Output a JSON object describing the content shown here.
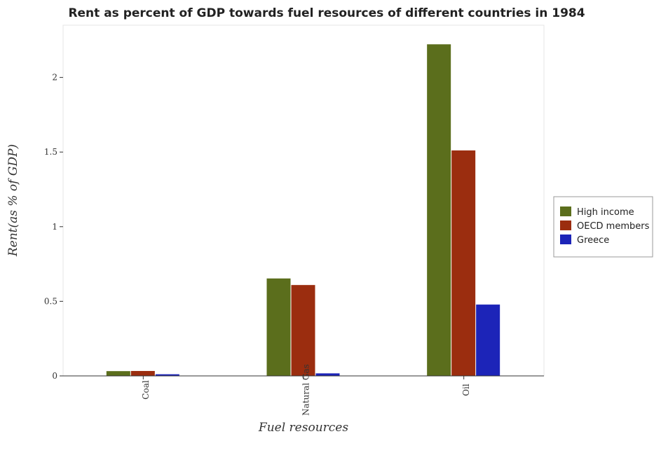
{
  "chart_data": {
    "type": "bar",
    "title": "Rent as percent of GDP towards fuel resources of different countries in 1984",
    "xlabel": "Fuel resources",
    "ylabel": "Rent(as % of GDP)",
    "categories": [
      "Coal",
      "Natural Gas",
      "Oil"
    ],
    "ylim": [
      0,
      2.35
    ],
    "yticks": [
      0,
      0.5,
      1,
      1.5,
      2
    ],
    "ytick_labels": [
      "0",
      "0.5",
      "1",
      "1.5",
      "2"
    ],
    "series": [
      {
        "name": "High income",
        "color": "#5b6e1c",
        "values": [
          0.032,
          0.653,
          2.222
        ]
      },
      {
        "name": "OECD members",
        "color": "#9b2d0f",
        "values": [
          0.033,
          0.609,
          1.511
        ]
      },
      {
        "name": "Greece",
        "color": "#1c24b8",
        "values": [
          0.011,
          0.017,
          0.478
        ]
      }
    ],
    "legend_position": "right",
    "grid": false
  }
}
